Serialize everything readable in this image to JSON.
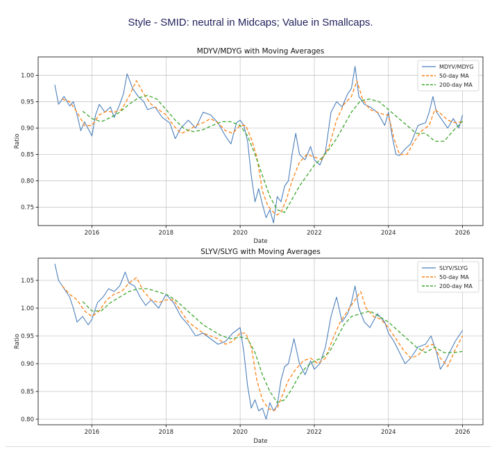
{
  "page": {
    "title": "Style - SMID: neutral in Midcaps; Value in Smallcaps."
  },
  "colors": {
    "ratio": "#4a7ebb",
    "ma50": "#ff7f0e",
    "ma200": "#3aa52a",
    "grid": "#b0b0b0",
    "axis": "#000000"
  },
  "chart_data": [
    {
      "type": "line",
      "title": "MDYV/MDYG with Moving Averages",
      "xlabel": "Date",
      "ylabel": "Ratio",
      "xlim": [
        2014.55,
        2026.55
      ],
      "ylim": [
        0.715,
        1.035
      ],
      "xticks": [
        2016,
        2018,
        2020,
        2022,
        2024,
        2026
      ],
      "xtick_labels": [
        "2016",
        "2018",
        "2020",
        "2022",
        "2024",
        "2026"
      ],
      "yticks": [
        0.75,
        0.8,
        0.85,
        0.9,
        0.95,
        1.0
      ],
      "ytick_labels": [
        "0.75",
        "0.80",
        "0.85",
        "0.90",
        "0.95",
        "1.00"
      ],
      "grid": true,
      "legend": "upper-right",
      "series": [
        {
          "name": "MDYV/MDYG",
          "style": "solid",
          "x": [
            2015.0,
            2015.1,
            2015.25,
            2015.4,
            2015.5,
            2015.6,
            2015.7,
            2015.8,
            2016.0,
            2016.1,
            2016.2,
            2016.35,
            2016.5,
            2016.6,
            2016.75,
            2016.85,
            2016.95,
            2017.1,
            2017.25,
            2017.4,
            2017.5,
            2017.7,
            2017.9,
            2018.1,
            2018.25,
            2018.4,
            2018.6,
            2018.8,
            2019.0,
            2019.2,
            2019.4,
            2019.6,
            2019.75,
            2019.9,
            2020.0,
            2020.1,
            2020.2,
            2020.3,
            2020.4,
            2020.5,
            2020.6,
            2020.7,
            2020.8,
            2020.9,
            2021.0,
            2021.1,
            2021.2,
            2021.3,
            2021.4,
            2021.5,
            2021.6,
            2021.75,
            2021.9,
            2022.0,
            2022.15,
            2022.3,
            2022.45,
            2022.6,
            2022.75,
            2022.9,
            2023.0,
            2023.1,
            2023.2,
            2023.35,
            2023.5,
            2023.7,
            2023.9,
            2024.0,
            2024.1,
            2024.2,
            2024.3,
            2024.45,
            2024.6,
            2024.8,
            2025.0,
            2025.1,
            2025.2,
            2025.3,
            2025.4,
            2025.5,
            2025.6,
            2025.75,
            2025.9,
            2026.0
          ],
          "values": [
            0.982,
            0.945,
            0.96,
            0.942,
            0.95,
            0.925,
            0.895,
            0.912,
            0.885,
            0.925,
            0.945,
            0.93,
            0.94,
            0.92,
            0.945,
            0.965,
            1.003,
            0.975,
            0.96,
            0.95,
            0.935,
            0.94,
            0.92,
            0.91,
            0.88,
            0.9,
            0.915,
            0.9,
            0.93,
            0.925,
            0.91,
            0.885,
            0.87,
            0.91,
            0.915,
            0.905,
            0.875,
            0.81,
            0.76,
            0.785,
            0.755,
            0.73,
            0.745,
            0.72,
            0.77,
            0.76,
            0.79,
            0.8,
            0.85,
            0.89,
            0.85,
            0.84,
            0.865,
            0.84,
            0.83,
            0.855,
            0.93,
            0.95,
            0.94,
            0.965,
            0.975,
            1.017,
            0.96,
            0.945,
            0.94,
            0.93,
            0.905,
            0.93,
            0.885,
            0.85,
            0.848,
            0.86,
            0.87,
            0.905,
            0.91,
            0.93,
            0.96,
            0.93,
            0.92,
            0.91,
            0.9,
            0.918,
            0.9,
            0.925
          ]
        },
        {
          "name": "50-day MA",
          "style": "dashed",
          "x": [
            2015.2,
            2015.4,
            2015.6,
            2015.8,
            2016.0,
            2016.2,
            2016.4,
            2016.6,
            2016.8,
            2017.0,
            2017.2,
            2017.4,
            2017.6,
            2017.8,
            2018.0,
            2018.2,
            2018.4,
            2018.6,
            2018.8,
            2019.0,
            2019.2,
            2019.4,
            2019.6,
            2019.8,
            2020.0,
            2020.15,
            2020.3,
            2020.45,
            2020.6,
            2020.75,
            2020.9,
            2021.0,
            2021.1,
            2021.25,
            2021.4,
            2021.6,
            2021.8,
            2022.0,
            2022.2,
            2022.4,
            2022.6,
            2022.8,
            2023.0,
            2023.15,
            2023.3,
            2023.5,
            2023.7,
            2023.9,
            2024.0,
            2024.15,
            2024.3,
            2024.5,
            2024.7,
            2024.9,
            2025.1,
            2025.25,
            2025.4,
            2025.6,
            2025.8,
            2026.0
          ],
          "values": [
            0.955,
            0.95,
            0.93,
            0.905,
            0.905,
            0.925,
            0.932,
            0.93,
            0.935,
            0.96,
            0.99,
            0.965,
            0.945,
            0.935,
            0.925,
            0.905,
            0.89,
            0.895,
            0.905,
            0.91,
            0.918,
            0.91,
            0.895,
            0.89,
            0.905,
            0.905,
            0.88,
            0.845,
            0.78,
            0.752,
            0.74,
            0.735,
            0.74,
            0.765,
            0.8,
            0.835,
            0.85,
            0.845,
            0.84,
            0.865,
            0.915,
            0.945,
            0.96,
            0.99,
            0.955,
            0.935,
            0.93,
            0.925,
            0.925,
            0.88,
            0.85,
            0.85,
            0.875,
            0.895,
            0.905,
            0.935,
            0.928,
            0.915,
            0.91,
            0.912
          ]
        },
        {
          "name": "200-day MA",
          "style": "dashed",
          "x": [
            2015.75,
            2016.0,
            2016.25,
            2016.5,
            2016.75,
            2017.0,
            2017.25,
            2017.5,
            2017.75,
            2018.0,
            2018.25,
            2018.5,
            2018.75,
            2019.0,
            2019.25,
            2019.5,
            2019.75,
            2020.0,
            2020.2,
            2020.4,
            2020.6,
            2020.8,
            2021.0,
            2021.2,
            2021.4,
            2021.6,
            2021.8,
            2022.0,
            2022.2,
            2022.4,
            2022.6,
            2022.8,
            2023.0,
            2023.25,
            2023.5,
            2023.75,
            2024.0,
            2024.25,
            2024.5,
            2024.75,
            2025.0,
            2025.25,
            2025.5,
            2025.75,
            2026.0
          ],
          "values": [
            0.932,
            0.918,
            0.912,
            0.92,
            0.93,
            0.945,
            0.957,
            0.962,
            0.955,
            0.935,
            0.915,
            0.898,
            0.893,
            0.897,
            0.905,
            0.912,
            0.912,
            0.905,
            0.885,
            0.85,
            0.81,
            0.77,
            0.745,
            0.74,
            0.765,
            0.79,
            0.81,
            0.83,
            0.843,
            0.86,
            0.88,
            0.905,
            0.93,
            0.952,
            0.955,
            0.95,
            0.935,
            0.92,
            0.905,
            0.89,
            0.89,
            0.875,
            0.875,
            0.895,
            0.913
          ]
        }
      ]
    },
    {
      "type": "line",
      "title": "SLYV/SLYG with Moving Averages",
      "xlabel": "Date",
      "ylabel": "Ratio",
      "xlim": [
        2014.55,
        2026.55
      ],
      "ylim": [
        0.79,
        1.09
      ],
      "xticks": [
        2016,
        2018,
        2020,
        2022,
        2024,
        2026
      ],
      "xtick_labels": [
        "2016",
        "2018",
        "2020",
        "2022",
        "2024",
        "2026"
      ],
      "yticks": [
        0.8,
        0.85,
        0.9,
        0.95,
        1.0,
        1.05
      ],
      "ytick_labels": [
        "0.80",
        "0.85",
        "0.90",
        "0.95",
        "1.00",
        "1.05"
      ],
      "grid": true,
      "legend": "upper-right",
      "series": [
        {
          "name": "SLYV/SLYG",
          "style": "solid",
          "x": [
            2015.0,
            2015.1,
            2015.25,
            2015.4,
            2015.5,
            2015.6,
            2015.75,
            2015.9,
            2016.0,
            2016.15,
            2016.3,
            2016.45,
            2016.6,
            2016.75,
            2016.9,
            2017.0,
            2017.15,
            2017.3,
            2017.45,
            2017.6,
            2017.8,
            2018.0,
            2018.2,
            2018.4,
            2018.6,
            2018.8,
            2019.0,
            2019.2,
            2019.4,
            2019.6,
            2019.8,
            2020.0,
            2020.1,
            2020.2,
            2020.3,
            2020.4,
            2020.5,
            2020.6,
            2020.7,
            2020.8,
            2020.9,
            2021.0,
            2021.1,
            2021.2,
            2021.3,
            2021.45,
            2021.6,
            2021.75,
            2021.9,
            2022.0,
            2022.15,
            2022.3,
            2022.45,
            2022.6,
            2022.75,
            2022.9,
            2023.0,
            2023.1,
            2023.2,
            2023.35,
            2023.5,
            2023.7,
            2023.9,
            2024.0,
            2024.15,
            2024.3,
            2024.45,
            2024.6,
            2024.8,
            2025.0,
            2025.15,
            2025.3,
            2025.4,
            2025.5,
            2025.65,
            2025.8,
            2026.0
          ],
          "values": [
            1.08,
            1.05,
            1.035,
            1.02,
            1.0,
            0.975,
            0.985,
            0.97,
            0.98,
            1.01,
            1.02,
            1.035,
            1.03,
            1.04,
            1.065,
            1.045,
            1.04,
            1.02,
            1.005,
            1.015,
            1.0,
            1.025,
            1.01,
            0.985,
            0.97,
            0.95,
            0.955,
            0.945,
            0.935,
            0.94,
            0.955,
            0.965,
            0.92,
            0.86,
            0.82,
            0.835,
            0.815,
            0.82,
            0.8,
            0.83,
            0.815,
            0.825,
            0.87,
            0.895,
            0.9,
            0.945,
            0.9,
            0.88,
            0.905,
            0.89,
            0.9,
            0.93,
            0.985,
            1.02,
            0.975,
            0.99,
            1.01,
            1.04,
            1.0,
            0.975,
            0.965,
            0.99,
            0.975,
            0.955,
            0.94,
            0.92,
            0.9,
            0.91,
            0.93,
            0.935,
            0.95,
            0.92,
            0.89,
            0.9,
            0.92,
            0.94,
            0.96
          ]
        },
        {
          "name": "50-day MA",
          "style": "dashed",
          "x": [
            2015.2,
            2015.4,
            2015.6,
            2015.8,
            2016.0,
            2016.2,
            2016.4,
            2016.6,
            2016.8,
            2017.0,
            2017.2,
            2017.4,
            2017.6,
            2017.8,
            2018.0,
            2018.2,
            2018.4,
            2018.6,
            2018.8,
            2019.0,
            2019.2,
            2019.4,
            2019.6,
            2019.8,
            2020.0,
            2020.15,
            2020.3,
            2020.45,
            2020.6,
            2020.75,
            2020.9,
            2021.0,
            2021.15,
            2021.3,
            2021.5,
            2021.7,
            2021.9,
            2022.1,
            2022.3,
            2022.5,
            2022.7,
            2022.9,
            2023.1,
            2023.25,
            2023.4,
            2023.6,
            2023.8,
            2024.0,
            2024.2,
            2024.4,
            2024.6,
            2024.8,
            2025.0,
            2025.2,
            2025.4,
            2025.6,
            2025.8,
            2026.0
          ],
          "values": [
            1.04,
            1.025,
            1.015,
            0.995,
            0.985,
            0.995,
            1.015,
            1.025,
            1.03,
            1.045,
            1.055,
            1.03,
            1.015,
            1.01,
            1.015,
            1.015,
            0.995,
            0.975,
            0.965,
            0.955,
            0.95,
            0.945,
            0.935,
            0.94,
            0.955,
            0.955,
            0.93,
            0.87,
            0.835,
            0.82,
            0.815,
            0.82,
            0.845,
            0.87,
            0.89,
            0.905,
            0.91,
            0.9,
            0.91,
            0.945,
            0.975,
            0.995,
            1.015,
            1.03,
            1.0,
            0.985,
            0.98,
            0.965,
            0.945,
            0.925,
            0.91,
            0.915,
            0.93,
            0.935,
            0.91,
            0.895,
            0.925,
            0.95
          ]
        },
        {
          "name": "200-day MA",
          "style": "dashed",
          "x": [
            2015.75,
            2016.0,
            2016.25,
            2016.5,
            2016.75,
            2017.0,
            2017.25,
            2017.5,
            2017.75,
            2018.0,
            2018.25,
            2018.5,
            2018.75,
            2019.0,
            2019.25,
            2019.5,
            2019.75,
            2020.0,
            2020.2,
            2020.4,
            2020.6,
            2020.8,
            2021.0,
            2021.2,
            2021.4,
            2021.6,
            2021.8,
            2022.0,
            2022.2,
            2022.4,
            2022.6,
            2022.8,
            2023.0,
            2023.25,
            2023.5,
            2023.75,
            2024.0,
            2024.25,
            2024.5,
            2024.75,
            2025.0,
            2025.25,
            2025.5,
            2025.75,
            2026.0
          ],
          "values": [
            1.012,
            0.995,
            0.995,
            1.01,
            1.02,
            1.03,
            1.035,
            1.035,
            1.03,
            1.025,
            1.015,
            1.0,
            0.985,
            0.97,
            0.96,
            0.95,
            0.945,
            0.948,
            0.945,
            0.92,
            0.88,
            0.85,
            0.83,
            0.835,
            0.855,
            0.88,
            0.895,
            0.905,
            0.91,
            0.92,
            0.945,
            0.97,
            0.985,
            0.99,
            0.995,
            0.985,
            0.975,
            0.96,
            0.945,
            0.93,
            0.92,
            0.93,
            0.92,
            0.92,
            0.922
          ]
        }
      ]
    }
  ]
}
